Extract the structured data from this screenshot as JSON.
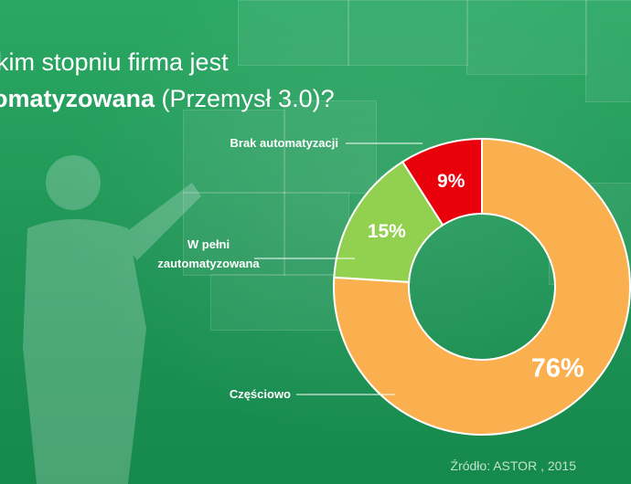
{
  "title": {
    "line1": "kim stopniu firma jest",
    "line2_bold": "omatyzowana",
    "line2_rest": " (Przemysł 3.0)?"
  },
  "source": "Źródło: ASTOR , 2015",
  "colors": {
    "background": "#1f9a58",
    "partial": "#FBB04F",
    "full": "#92D050",
    "none": "#E8000B"
  },
  "chart_data": {
    "type": "pie",
    "variant": "donut",
    "title": "",
    "slices": [
      {
        "label": "Brak automatyzacji",
        "value": 9,
        "display": "9%",
        "color": "#E8000B"
      },
      {
        "label": "W pełni zautomatyzowana",
        "value": 15,
        "display": "15%",
        "color": "#92D050"
      },
      {
        "label": "Częściowo",
        "value": 76,
        "display": "76%",
        "color": "#FBB04F"
      }
    ]
  }
}
